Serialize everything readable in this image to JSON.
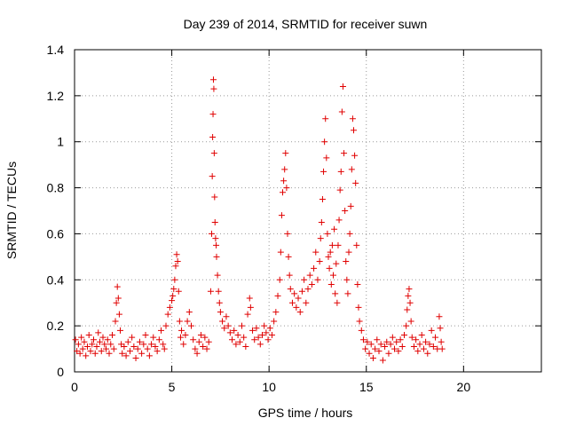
{
  "chart_data": {
    "type": "scatter",
    "title": "Day 239 of 2014, SRMTID for receiver suwn",
    "xlabel": "GPS time / hours",
    "ylabel": "SRMTID / TECUs",
    "xlim": [
      0,
      24
    ],
    "ylim": [
      0,
      1.4
    ],
    "xticks": [
      0,
      5,
      10,
      15,
      20
    ],
    "yticks": [
      0,
      0.2,
      0.4,
      0.6,
      0.8,
      1,
      1.2,
      1.4
    ],
    "xtick_labels": [
      "0",
      "5",
      "10",
      "15",
      "20"
    ],
    "ytick_labels": [
      "0",
      "0.2",
      "0.4",
      "0.6",
      "0.8",
      "1",
      "1.2",
      "1.4"
    ],
    "grid": true,
    "marker": "+",
    "color": "#e00000",
    "series": [
      {
        "name": "SRMTID",
        "points": [
          [
            0.05,
            0.14
          ],
          [
            0.12,
            0.09
          ],
          [
            0.2,
            0.12
          ],
          [
            0.28,
            0.08
          ],
          [
            0.35,
            0.15
          ],
          [
            0.42,
            0.1
          ],
          [
            0.5,
            0.13
          ],
          [
            0.58,
            0.07
          ],
          [
            0.66,
            0.11
          ],
          [
            0.74,
            0.16
          ],
          [
            0.82,
            0.09
          ],
          [
            0.9,
            0.12
          ],
          [
            0.98,
            0.14
          ],
          [
            1.06,
            0.08
          ],
          [
            1.14,
            0.11
          ],
          [
            1.22,
            0.17
          ],
          [
            1.3,
            0.13
          ],
          [
            1.38,
            0.09
          ],
          [
            1.46,
            0.15
          ],
          [
            1.54,
            0.12
          ],
          [
            1.62,
            0.1
          ],
          [
            1.7,
            0.14
          ],
          [
            1.78,
            0.08
          ],
          [
            1.86,
            0.12
          ],
          [
            1.94,
            0.16
          ],
          [
            2.02,
            0.1
          ],
          [
            2.1,
            0.22
          ],
          [
            2.15,
            0.3
          ],
          [
            2.2,
            0.37
          ],
          [
            2.25,
            0.32
          ],
          [
            2.3,
            0.25
          ],
          [
            2.35,
            0.18
          ],
          [
            2.4,
            0.12
          ],
          [
            2.45,
            0.08
          ],
          [
            2.55,
            0.11
          ],
          [
            2.65,
            0.07
          ],
          [
            2.75,
            0.13
          ],
          [
            2.85,
            0.09
          ],
          [
            2.95,
            0.15
          ],
          [
            3.05,
            0.11
          ],
          [
            3.15,
            0.06
          ],
          [
            3.25,
            0.1
          ],
          [
            3.35,
            0.13
          ],
          [
            3.45,
            0.08
          ],
          [
            3.55,
            0.12
          ],
          [
            3.65,
            0.16
          ],
          [
            3.75,
            0.1
          ],
          [
            3.85,
            0.07
          ],
          [
            3.95,
            0.12
          ],
          [
            4.05,
            0.15
          ],
          [
            4.15,
            0.11
          ],
          [
            4.25,
            0.09
          ],
          [
            4.35,
            0.14
          ],
          [
            4.45,
            0.18
          ],
          [
            4.55,
            0.12
          ],
          [
            4.62,
            0.1
          ],
          [
            4.7,
            0.2
          ],
          [
            4.8,
            0.25
          ],
          [
            4.9,
            0.28
          ],
          [
            5.0,
            0.31
          ],
          [
            5.05,
            0.33
          ],
          [
            5.1,
            0.36
          ],
          [
            5.15,
            0.4
          ],
          [
            5.2,
            0.46
          ],
          [
            5.25,
            0.51
          ],
          [
            5.3,
            0.48
          ],
          [
            5.35,
            0.35
          ],
          [
            5.4,
            0.22
          ],
          [
            5.45,
            0.15
          ],
          [
            5.5,
            0.18
          ],
          [
            5.6,
            0.12
          ],
          [
            5.7,
            0.16
          ],
          [
            5.8,
            0.22
          ],
          [
            5.9,
            0.26
          ],
          [
            6.0,
            0.2
          ],
          [
            6.1,
            0.14
          ],
          [
            6.2,
            0.1
          ],
          [
            6.3,
            0.08
          ],
          [
            6.4,
            0.13
          ],
          [
            6.5,
            0.16
          ],
          [
            6.6,
            0.11
          ],
          [
            6.7,
            0.15
          ],
          [
            6.8,
            0.1
          ],
          [
            6.9,
            0.13
          ],
          [
            7.0,
            0.35
          ],
          [
            7.05,
            0.6
          ],
          [
            7.08,
            0.85
          ],
          [
            7.1,
            1.02
          ],
          [
            7.12,
            1.12
          ],
          [
            7.14,
            1.27
          ],
          [
            7.16,
            1.23
          ],
          [
            7.18,
            0.95
          ],
          [
            7.2,
            0.76
          ],
          [
            7.22,
            0.65
          ],
          [
            7.25,
            0.58
          ],
          [
            7.28,
            0.55
          ],
          [
            7.3,
            0.5
          ],
          [
            7.35,
            0.42
          ],
          [
            7.4,
            0.35
          ],
          [
            7.45,
            0.3
          ],
          [
            7.5,
            0.26
          ],
          [
            7.6,
            0.22
          ],
          [
            7.7,
            0.19
          ],
          [
            7.8,
            0.24
          ],
          [
            7.9,
            0.2
          ],
          [
            8.0,
            0.17
          ],
          [
            8.1,
            0.14
          ],
          [
            8.2,
            0.18
          ],
          [
            8.3,
            0.12
          ],
          [
            8.4,
            0.16
          ],
          [
            8.5,
            0.13
          ],
          [
            8.6,
            0.2
          ],
          [
            8.7,
            0.15
          ],
          [
            8.8,
            0.11
          ],
          [
            8.9,
            0.25
          ],
          [
            9.0,
            0.32
          ],
          [
            9.05,
            0.28
          ],
          [
            9.15,
            0.18
          ],
          [
            9.25,
            0.14
          ],
          [
            9.35,
            0.19
          ],
          [
            9.45,
            0.15
          ],
          [
            9.55,
            0.12
          ],
          [
            9.65,
            0.16
          ],
          [
            9.75,
            0.2
          ],
          [
            9.85,
            0.17
          ],
          [
            9.95,
            0.14
          ],
          [
            10.05,
            0.19
          ],
          [
            10.15,
            0.16
          ],
          [
            10.25,
            0.22
          ],
          [
            10.35,
            0.26
          ],
          [
            10.45,
            0.33
          ],
          [
            10.55,
            0.4
          ],
          [
            10.6,
            0.52
          ],
          [
            10.65,
            0.68
          ],
          [
            10.7,
            0.78
          ],
          [
            10.75,
            0.83
          ],
          [
            10.8,
            0.88
          ],
          [
            10.85,
            0.95
          ],
          [
            10.9,
            0.8
          ],
          [
            10.95,
            0.6
          ],
          [
            11.0,
            0.5
          ],
          [
            11.05,
            0.42
          ],
          [
            11.1,
            0.36
          ],
          [
            11.2,
            0.3
          ],
          [
            11.3,
            0.34
          ],
          [
            11.4,
            0.28
          ],
          [
            11.5,
            0.32
          ],
          [
            11.6,
            0.26
          ],
          [
            11.7,
            0.35
          ],
          [
            11.8,
            0.4
          ],
          [
            11.9,
            0.3
          ],
          [
            12.0,
            0.36
          ],
          [
            12.1,
            0.42
          ],
          [
            12.2,
            0.38
          ],
          [
            12.3,
            0.45
          ],
          [
            12.4,
            0.52
          ],
          [
            12.5,
            0.4
          ],
          [
            12.6,
            0.48
          ],
          [
            12.65,
            0.58
          ],
          [
            12.7,
            0.65
          ],
          [
            12.75,
            0.75
          ],
          [
            12.8,
            0.87
          ],
          [
            12.85,
            1.0
          ],
          [
            12.9,
            1.1
          ],
          [
            12.95,
            0.93
          ],
          [
            13.0,
            0.6
          ],
          [
            13.05,
            0.5
          ],
          [
            13.1,
            0.45
          ],
          [
            13.15,
            0.52
          ],
          [
            13.2,
            0.38
          ],
          [
            13.25,
            0.55
          ],
          [
            13.3,
            0.42
          ],
          [
            13.35,
            0.62
          ],
          [
            13.4,
            0.34
          ],
          [
            13.45,
            0.47
          ],
          [
            13.5,
            0.3
          ],
          [
            13.55,
            0.55
          ],
          [
            13.6,
            0.66
          ],
          [
            13.65,
            0.79
          ],
          [
            13.7,
            0.87
          ],
          [
            13.75,
            1.13
          ],
          [
            13.8,
            1.24
          ],
          [
            13.85,
            0.95
          ],
          [
            13.9,
            0.7
          ],
          [
            13.95,
            0.48
          ],
          [
            14.0,
            0.4
          ],
          [
            14.05,
            0.34
          ],
          [
            14.1,
            0.52
          ],
          [
            14.15,
            0.6
          ],
          [
            14.2,
            0.72
          ],
          [
            14.25,
            0.88
          ],
          [
            14.3,
            1.1
          ],
          [
            14.35,
            1.05
          ],
          [
            14.4,
            0.94
          ],
          [
            14.45,
            0.82
          ],
          [
            14.5,
            0.55
          ],
          [
            14.55,
            0.38
          ],
          [
            14.6,
            0.28
          ],
          [
            14.65,
            0.22
          ],
          [
            14.75,
            0.18
          ],
          [
            14.85,
            0.14
          ],
          [
            14.95,
            0.1
          ],
          [
            15.05,
            0.13
          ],
          [
            15.15,
            0.08
          ],
          [
            15.25,
            0.12
          ],
          [
            15.35,
            0.06
          ],
          [
            15.45,
            0.1
          ],
          [
            15.55,
            0.14
          ],
          [
            15.65,
            0.09
          ],
          [
            15.75,
            0.12
          ],
          [
            15.85,
            0.05
          ],
          [
            15.95,
            0.11
          ],
          [
            16.05,
            0.13
          ],
          [
            16.15,
            0.08
          ],
          [
            16.25,
            0.12
          ],
          [
            16.35,
            0.15
          ],
          [
            16.45,
            0.1
          ],
          [
            16.55,
            0.13
          ],
          [
            16.65,
            0.09
          ],
          [
            16.75,
            0.14
          ],
          [
            16.85,
            0.11
          ],
          [
            16.95,
            0.16
          ],
          [
            17.05,
            0.2
          ],
          [
            17.1,
            0.27
          ],
          [
            17.15,
            0.33
          ],
          [
            17.2,
            0.36
          ],
          [
            17.25,
            0.3
          ],
          [
            17.3,
            0.22
          ],
          [
            17.35,
            0.15
          ],
          [
            17.45,
            0.11
          ],
          [
            17.55,
            0.14
          ],
          [
            17.65,
            0.09
          ],
          [
            17.75,
            0.12
          ],
          [
            17.85,
            0.16
          ],
          [
            17.95,
            0.1
          ],
          [
            18.05,
            0.13
          ],
          [
            18.15,
            0.08
          ],
          [
            18.25,
            0.12
          ],
          [
            18.35,
            0.18
          ],
          [
            18.45,
            0.11
          ],
          [
            18.55,
            0.15
          ],
          [
            18.65,
            0.1
          ],
          [
            18.75,
            0.24
          ],
          [
            18.8,
            0.19
          ],
          [
            18.85,
            0.13
          ],
          [
            18.9,
            0.1
          ]
        ]
      }
    ]
  }
}
